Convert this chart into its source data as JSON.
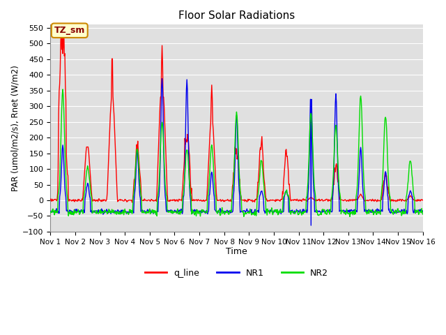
{
  "title": "Floor Solar Radiations",
  "xlabel": "Time",
  "ylabel": "PAR (umol/m2/s), Rnet (W/m2)",
  "ylim": [
    -100,
    560
  ],
  "yticks": [
    -100,
    -50,
    0,
    50,
    100,
    150,
    200,
    250,
    300,
    350,
    400,
    450,
    500,
    550
  ],
  "xtick_labels": [
    "Nov 1",
    "Nov 2",
    "Nov 3",
    "Nov 4",
    "Nov 5",
    "Nov 6",
    "Nov 7",
    "Nov 8",
    "Nov 9",
    "Nov 10",
    "Nov 11",
    "Nov 12",
    "Nov 13",
    "Nov 14",
    "Nov 15",
    "Nov 16"
  ],
  "annotation_text": "TZ_sm",
  "annotation_bg": "#ffffcc",
  "annotation_border": "#cc8800",
  "line_colors": {
    "q_line": "#ff0000",
    "NR1": "#0000ee",
    "NR2": "#00dd00"
  },
  "line_widths": {
    "q_line": 1.0,
    "NR1": 1.0,
    "NR2": 1.0
  },
  "bg_color": "#e0e0e0",
  "grid_color": "#ffffff",
  "figsize": [
    6.4,
    4.8
  ],
  "dpi": 100
}
